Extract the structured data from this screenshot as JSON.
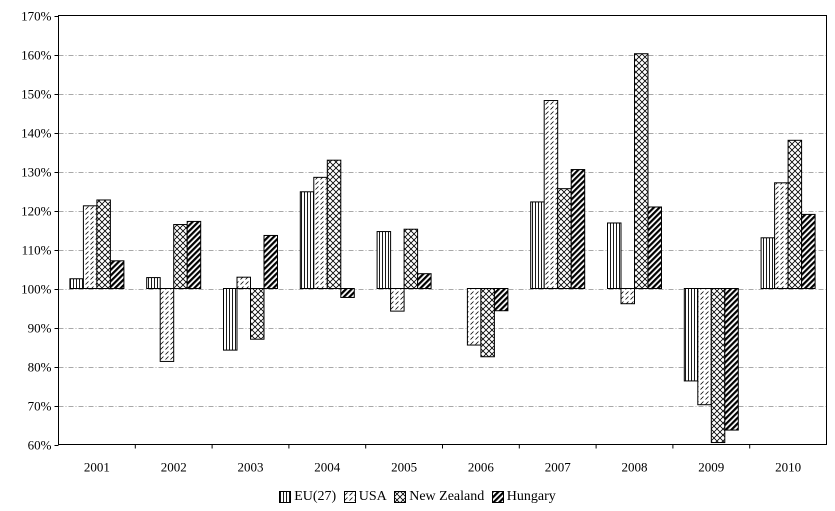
{
  "chart_data": {
    "type": "bar",
    "title": "",
    "xlabel": "",
    "ylabel": "",
    "baseline": 100,
    "ylim": [
      60,
      170
    ],
    "yticks": [
      60,
      70,
      80,
      90,
      100,
      110,
      120,
      130,
      140,
      150,
      160,
      170
    ],
    "ytick_labels": [
      "60%",
      "70%",
      "80%",
      "90%",
      "100%",
      "110%",
      "120%",
      "130%",
      "140%",
      "150%",
      "160%",
      "170%"
    ],
    "grid": "horizontal dashed",
    "legend_position": "bottom",
    "categories": [
      "2001",
      "2002",
      "2003",
      "2004",
      "2005",
      "2006",
      "2007",
      "2008",
      "2009",
      "2010"
    ],
    "series": [
      {
        "name": "EU(27)",
        "pattern": "vertical-lines",
        "values": [
          102.5,
          102.8,
          84.2,
          124.8,
          114.6,
          100,
          122.2,
          116.8,
          76.3,
          113.0
        ]
      },
      {
        "name": "USA",
        "pattern": "forward-diagonal-dashes",
        "values": [
          121.2,
          81.3,
          102.9,
          128.5,
          94.2,
          85.5,
          148.2,
          96.1,
          70.2,
          127.1
        ]
      },
      {
        "name": "New Zealand",
        "pattern": "diagonal-cross",
        "values": [
          122.7,
          116.4,
          87.0,
          132.9,
          115.2,
          82.5,
          125.6,
          160.2,
          60.5,
          138.0
        ]
      },
      {
        "name": "Hungary",
        "pattern": "thick-diagonal",
        "values": [
          107.1,
          117.2,
          113.6,
          97.7,
          103.8,
          94.3,
          130.5,
          120.9,
          63.7,
          119.0
        ]
      }
    ]
  }
}
